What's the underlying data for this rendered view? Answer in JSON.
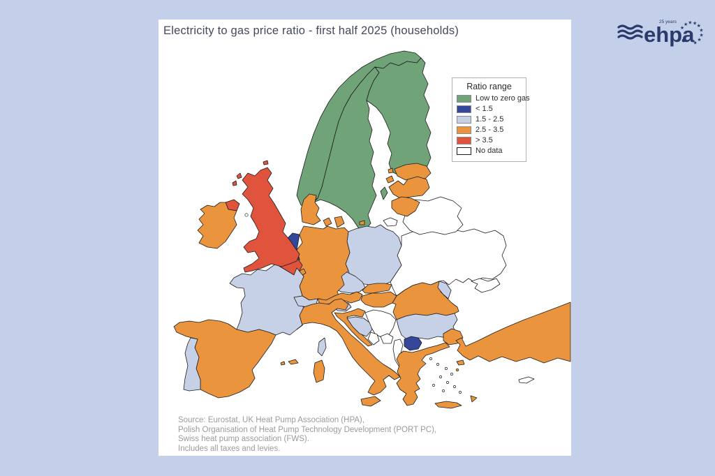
{
  "card": {
    "title": "Electricity to gas price ratio - first half 2025 (households)"
  },
  "legend": {
    "title": "Ratio range",
    "items": [
      {
        "key": "low_zero",
        "label": "Low to zero gas",
        "color": "#70a377"
      },
      {
        "key": "lt15",
        "label": "< 1.5",
        "color": "#35479b"
      },
      {
        "key": "r1525",
        "label": "1.5 - 2.5",
        "color": "#c6d1e8"
      },
      {
        "key": "r2535",
        "label": "2.5 - 3.5",
        "color": "#ea953e"
      },
      {
        "key": "gt35",
        "label": "> 3.5",
        "color": "#e0543e"
      },
      {
        "key": "nodata",
        "label": "No data",
        "color": "#ffffff"
      }
    ]
  },
  "source": {
    "lines": [
      "Source: Eurostat, UK Heat Pump Association (HPA),",
      "Polish Organisation of Heat Pump Technology Development (PORT PC),",
      "Swiss heat pump association (FWS).",
      "Includes all taxes and levies."
    ]
  },
  "logo": {
    "text": "ehpa",
    "badge": "25 years",
    "color": "#2b3a6c"
  },
  "map": {
    "countries": [
      {
        "id": "ukraine",
        "name": "Ukraine",
        "category": "nodata"
      },
      {
        "id": "belarus",
        "name": "Belarus",
        "category": "nodata"
      },
      {
        "id": "crimea",
        "name": "Crimea",
        "category": "nodata"
      },
      {
        "id": "kaliningrad",
        "name": "Kaliningrad",
        "category": "nodata"
      },
      {
        "id": "serbia",
        "name": "Serbia",
        "category": "nodata"
      },
      {
        "id": "montenegro",
        "name": "Montenegro",
        "category": "nodata"
      },
      {
        "id": "kosovo",
        "name": "Kosovo",
        "category": "nodata"
      },
      {
        "id": "albania",
        "name": "Albania",
        "category": "nodata"
      },
      {
        "id": "cyprus",
        "name": "Cyprus",
        "category": "nodata"
      },
      {
        "id": "norway",
        "name": "Norway",
        "category": "low_zero"
      },
      {
        "id": "sweden",
        "name": "Sweden",
        "category": "low_zero"
      },
      {
        "id": "finland",
        "name": "Finland",
        "category": "low_zero"
      },
      {
        "id": "estonia",
        "name": "Estonia",
        "category": "r2535"
      },
      {
        "id": "latvia",
        "name": "Latvia",
        "category": "r2535"
      },
      {
        "id": "lithuania",
        "name": "Lithuania",
        "category": "r2535"
      },
      {
        "id": "poland",
        "name": "Poland",
        "category": "r1525"
      },
      {
        "id": "czechia",
        "name": "Czechia",
        "category": "r1525"
      },
      {
        "id": "germany",
        "name": "Germany",
        "category": "r2535"
      },
      {
        "id": "denmark",
        "name": "Denmark",
        "category": "r2535"
      },
      {
        "id": "netherlands",
        "name": "Netherlands",
        "category": "lt15"
      },
      {
        "id": "belgium",
        "name": "Belgium",
        "category": "gt35"
      },
      {
        "id": "luxembourg",
        "name": "Luxembourg",
        "category": "r2535"
      },
      {
        "id": "france",
        "name": "France",
        "category": "r1525"
      },
      {
        "id": "switzerland",
        "name": "Switzerland",
        "category": "r1525"
      },
      {
        "id": "austria",
        "name": "Austria",
        "category": "r2535"
      },
      {
        "id": "slovakia",
        "name": "Slovakia",
        "category": "r2535"
      },
      {
        "id": "hungary",
        "name": "Hungary",
        "category": "r2535"
      },
      {
        "id": "slovenia",
        "name": "Slovenia",
        "category": "r1525"
      },
      {
        "id": "croatia",
        "name": "Croatia",
        "category": "r2535"
      },
      {
        "id": "bosnia",
        "name": "Bosnia and Herzegovina",
        "category": "r1525"
      },
      {
        "id": "romania",
        "name": "Romania",
        "category": "r2535"
      },
      {
        "id": "moldova",
        "name": "Moldova",
        "category": "r1525"
      },
      {
        "id": "bulgaria",
        "name": "Bulgaria",
        "category": "r1525"
      },
      {
        "id": "nmacedonia",
        "name": "North Macedonia",
        "category": "lt15"
      },
      {
        "id": "greece",
        "name": "Greece",
        "category": "r2535"
      },
      {
        "id": "turkey",
        "name": "Turkey",
        "category": "r2535"
      },
      {
        "id": "italy",
        "name": "Italy",
        "category": "r2535"
      },
      {
        "id": "spain",
        "name": "Spain",
        "category": "r2535"
      },
      {
        "id": "portugal",
        "name": "Portugal",
        "category": "r1525"
      },
      {
        "id": "uk",
        "name": "United Kingdom",
        "category": "gt35"
      },
      {
        "id": "ireland",
        "name": "Ireland",
        "category": "r2535"
      }
    ]
  },
  "chart_data": {
    "type": "choropleth_map",
    "region": "Europe",
    "title": "Electricity to gas price ratio - first half 2025 (households)",
    "legend_title": "Ratio range",
    "classes": [
      "Low to zero gas",
      "< 1.5",
      "1.5 - 2.5",
      "2.5 - 3.5",
      "> 3.5",
      "No data"
    ],
    "country_values": {
      "Norway": "Low to zero gas",
      "Sweden": "Low to zero gas",
      "Finland": "Low to zero gas",
      "Netherlands": "< 1.5",
      "North Macedonia": "< 1.5",
      "France": "1.5 - 2.5",
      "Portugal": "1.5 - 2.5",
      "Poland": "1.5 - 2.5",
      "Czechia": "1.5 - 2.5",
      "Switzerland": "1.5 - 2.5",
      "Slovenia": "1.5 - 2.5",
      "Bosnia and Herzegovina": "1.5 - 2.5",
      "Bulgaria": "1.5 - 2.5",
      "Moldova": "1.5 - 2.5",
      "Ireland": "2.5 - 3.5",
      "Denmark": "2.5 - 3.5",
      "Germany": "2.5 - 3.5",
      "Luxembourg": "2.5 - 3.5",
      "Austria": "2.5 - 3.5",
      "Spain": "2.5 - 3.5",
      "Italy": "2.5 - 3.5",
      "Estonia": "2.5 - 3.5",
      "Latvia": "2.5 - 3.5",
      "Lithuania": "2.5 - 3.5",
      "Slovakia": "2.5 - 3.5",
      "Hungary": "2.5 - 3.5",
      "Croatia": "2.5 - 3.5",
      "Romania": "2.5 - 3.5",
      "Greece": "2.5 - 3.5",
      "Turkey": "2.5 - 3.5",
      "United Kingdom": "> 3.5",
      "Belgium": "> 3.5",
      "Ukraine": "No data",
      "Belarus": "No data",
      "Serbia": "No data",
      "Albania": "No data",
      "Montenegro": "No data",
      "Kosovo": "No data",
      "Cyprus": "No data"
    }
  }
}
